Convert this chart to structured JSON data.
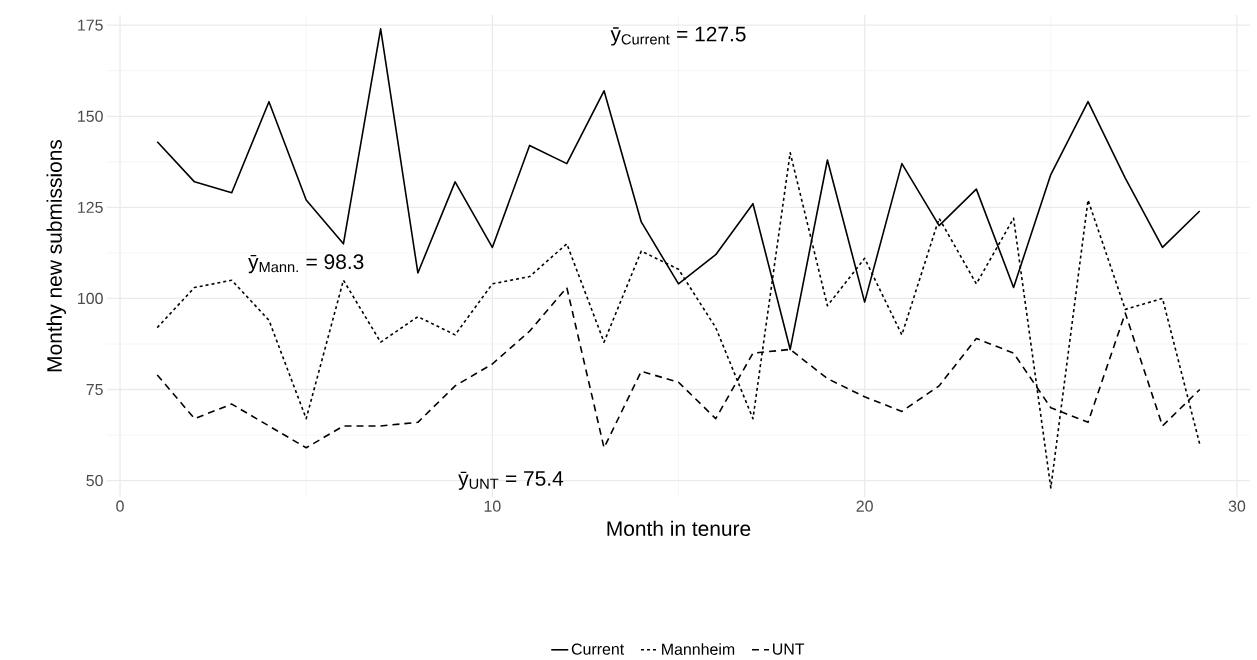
{
  "chart_data": {
    "type": "line",
    "xlabel": "Month in tenure",
    "ylabel": "Monthy new submissions",
    "x": [
      1,
      2,
      3,
      4,
      5,
      6,
      7,
      8,
      9,
      10,
      11,
      12,
      13,
      14,
      15,
      16,
      17,
      18,
      19,
      20,
      21,
      22,
      23,
      24,
      25,
      26,
      27,
      28,
      29
    ],
    "series": [
      {
        "name": "Current",
        "color": "#000000",
        "line_style": "solid",
        "values": [
          143,
          132,
          129,
          154,
          127,
          115,
          174,
          107,
          132,
          114,
          142,
          137,
          157,
          121,
          104,
          112,
          126,
          86,
          138,
          99,
          137,
          120,
          130,
          103,
          134,
          154,
          133,
          114,
          124
        ]
      },
      {
        "name": "Mannheim",
        "color": "#000000",
        "line_style": "dotted",
        "values": [
          92,
          103,
          105,
          94,
          67,
          105,
          88,
          95,
          90,
          104,
          106,
          115,
          88,
          113,
          108,
          92,
          67,
          140,
          98,
          111,
          90,
          122,
          104,
          122,
          48,
          127,
          97,
          100,
          60
        ]
      },
      {
        "name": "UNT",
        "color": "#000000",
        "line_style": "dashed",
        "values": [
          79,
          67,
          71,
          65,
          59,
          65,
          65,
          66,
          76,
          82,
          91,
          103,
          59,
          80,
          77,
          67,
          85,
          86,
          78,
          73,
          69,
          76,
          89,
          85,
          70,
          66,
          96,
          65,
          75
        ]
      }
    ],
    "annotations": [
      "ȳ$_{Current}$ = 127.5",
      "ȳ$_{Mann.}$ = 98.3",
      "ȳ$_{UNT}$ = 75.4"
    ],
    "xlim": [
      -0.35,
      30.35
    ],
    "ylim": [
      45.5,
      177.8
    ],
    "xticks": [
      0,
      10,
      20,
      30
    ],
    "yticks": [
      50,
      75,
      100,
      125,
      150,
      175
    ],
    "grid": true,
    "legend": "bottom",
    "marker": "none"
  }
}
